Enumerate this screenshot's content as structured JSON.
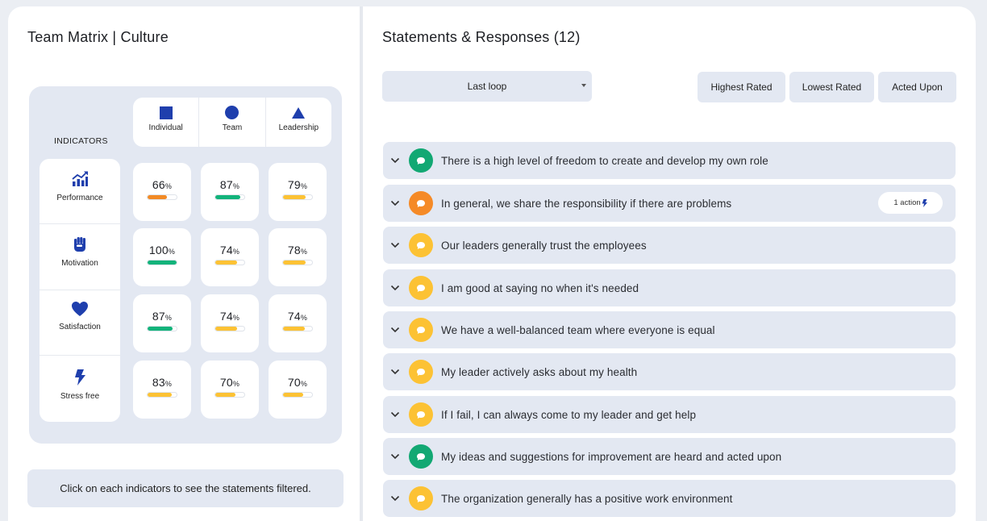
{
  "left": {
    "title": "Team Matrix | Culture",
    "indicators_heading": "INDICATORS",
    "columns": [
      {
        "label": "Individual",
        "shape": "square-icon"
      },
      {
        "label": "Team",
        "shape": "circle-icon"
      },
      {
        "label": "Leadership",
        "shape": "triangle-icon"
      }
    ],
    "indicators": [
      {
        "label": "Performance",
        "icon": "performance-chart-icon"
      },
      {
        "label": "Motivation",
        "icon": "fist-icon"
      },
      {
        "label": "Satisfaction",
        "icon": "heart-icon"
      },
      {
        "label": "Stress free",
        "icon": "lightning-icon"
      }
    ],
    "scores": [
      [
        {
          "value": "66",
          "level": 0.66,
          "color": "#f28a25"
        },
        {
          "value": "87",
          "level": 0.87,
          "color": "#12b37a"
        },
        {
          "value": "79",
          "level": 0.79,
          "color": "#fcc234"
        }
      ],
      [
        {
          "value": "100",
          "level": 1.0,
          "color": "#12b37a"
        },
        {
          "value": "74",
          "level": 0.74,
          "color": "#fcc234"
        },
        {
          "value": "78",
          "level": 0.78,
          "color": "#fcc234"
        }
      ],
      [
        {
          "value": "87",
          "level": 0.87,
          "color": "#12b37a"
        },
        {
          "value": "74",
          "level": 0.74,
          "color": "#fcc234"
        },
        {
          "value": "74",
          "level": 0.74,
          "color": "#fcc234"
        }
      ],
      [
        {
          "value": "83",
          "level": 0.83,
          "color": "#fcc234"
        },
        {
          "value": "70",
          "level": 0.7,
          "color": "#fcc234"
        },
        {
          "value": "70",
          "level": 0.7,
          "color": "#fcc234"
        }
      ]
    ],
    "percent_sign": "%",
    "hint": "Click on each indicators to see the statements filtered."
  },
  "right": {
    "title": "Statements & Responses (12)",
    "dropdown_value": "Last loop",
    "filters": [
      "Highest Rated",
      "Lowest Rated",
      "Acted Upon"
    ],
    "statements": [
      {
        "text": "There is a high level of freedom to create and develop my own role",
        "color": "#12a873",
        "badge": ""
      },
      {
        "text": "In general, we share the responsibility if there are problems",
        "color": "#f58a27",
        "badge": "1 action"
      },
      {
        "text": "Our leaders generally trust the employees",
        "color": "#fcc234",
        "badge": ""
      },
      {
        "text": "I am good at saying no when it's needed",
        "color": "#fcc234",
        "badge": ""
      },
      {
        "text": "We have a well-balanced team where everyone is equal",
        "color": "#fcc234",
        "badge": ""
      },
      {
        "text": "My leader actively asks about my health",
        "color": "#fcc234",
        "badge": ""
      },
      {
        "text": "If I fail, I can always come to my leader and get help",
        "color": "#fcc234",
        "badge": ""
      },
      {
        "text": "My ideas and suggestions for improvement are heard and acted upon",
        "color": "#12a873",
        "badge": ""
      },
      {
        "text": "The organization generally has a positive work environment",
        "color": "#fcc234",
        "badge": ""
      }
    ]
  },
  "colors": {
    "accent_blue": "#1f3fad",
    "panel_bg": "#e3e8f2",
    "green": "#12b37a",
    "orange": "#f28a25",
    "yellow": "#fcc234"
  }
}
